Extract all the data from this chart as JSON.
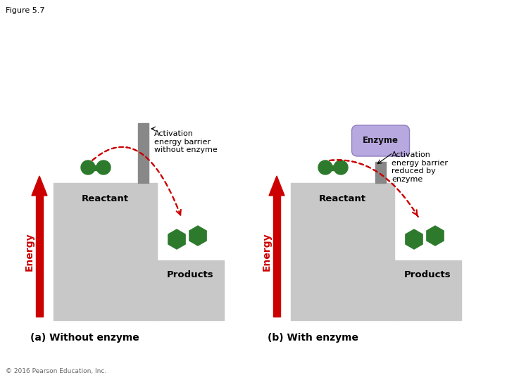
{
  "figure_title": "Figure 5.7",
  "background_color": "#ffffff",
  "panel_a": {
    "label": "(a) Without enzyme",
    "energy_label": "Energy",
    "reactant_label": "Reactant",
    "products_label": "Products",
    "activation_label": "Activation\nenergy barrier\nwithout enzyme",
    "bar_color": "#888888",
    "step_color": "#c8c8c8",
    "arrow_color": "#cc0000",
    "dashed_color": "#cc0000"
  },
  "panel_b": {
    "label": "(b) With enzyme",
    "energy_label": "Energy",
    "reactant_label": "Reactant",
    "products_label": "Products",
    "activation_label": "Activation\nenergy barrier\nreduced by\nenzyme",
    "enzyme_label": "Enzyme",
    "bar_color": "#888888",
    "step_color": "#c8c8c8",
    "arrow_color": "#cc0000",
    "dashed_color": "#cc0000",
    "enzyme_fill": "#b8a8e0",
    "enzyme_stroke": "#9080c0"
  },
  "green_color": "#2d7a2d",
  "copyright": "© 2016 Pearson Education, Inc."
}
